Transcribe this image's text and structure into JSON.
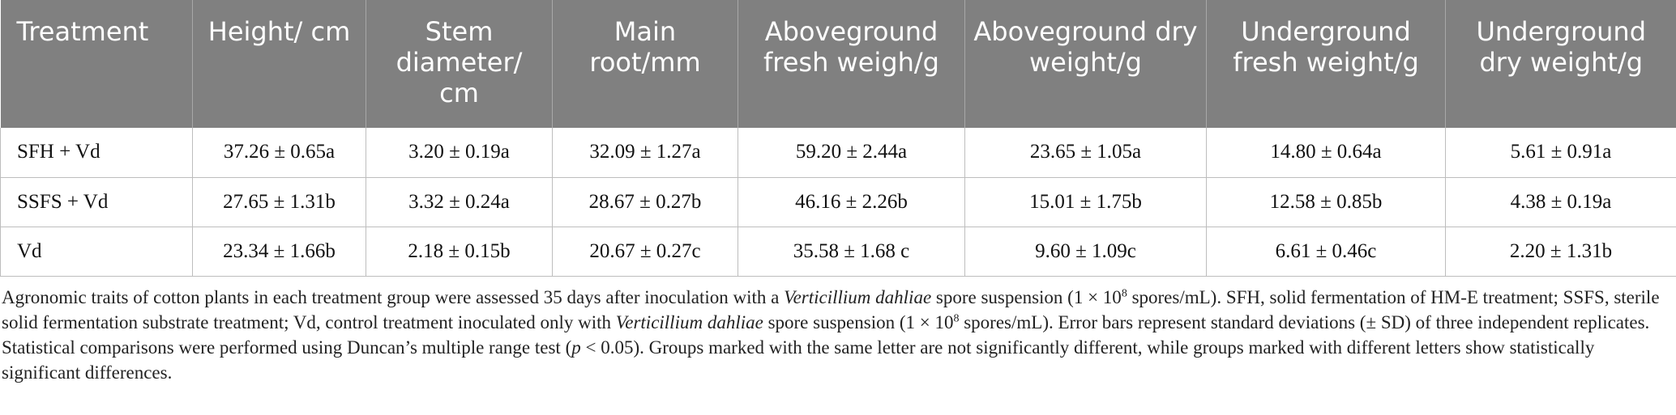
{
  "table": {
    "header": [
      "Treatment",
      "Height/ cm",
      "Stem diameter/ cm",
      "Main root/mm",
      "Aboveground fresh weigh/g",
      "Aboveground dry weight/g",
      "Underground fresh weight/g",
      "Underground dry weight/g"
    ],
    "rows": [
      [
        "SFH + Vd",
        "37.26 ± 0.65a",
        "3.20 ± 0.19a",
        "32.09 ± 1.27a",
        "59.20 ± 2.44a",
        "23.65 ± 1.05a",
        "14.80 ± 0.64a",
        "5.61 ± 0.91a"
      ],
      [
        "SSFS + Vd",
        "27.65 ± 1.31b",
        "3.32 ± 0.24a",
        "28.67 ± 0.27b",
        "46.16 ± 2.26b",
        "15.01 ± 1.75b",
        "12.58 ± 0.85b",
        "4.38 ± 0.19a"
      ],
      [
        "Vd",
        "23.34 ± 1.66b",
        "2.18 ± 0.15b",
        "20.67 ± 0.27c",
        "35.58 ± 1.68 c",
        "9.60 ± 1.09c",
        "6.61 ± 0.46c",
        "2.20 ± 1.31b"
      ]
    ]
  },
  "caption": [
    "Agronomic traits of cotton plants in each treatment group were assessed 35 days after inoculation with a ",
    "Verticillium dahliae",
    " spore suspension (1 × 10",
    "8",
    " spores/mL). SFH, solid fermentation of HM-E treatment; SSFS, sterile solid fermentation substrate treatment; Vd, control treatment inoculated only with ",
    "Verticillium dahliae",
    " spore suspension (1 × 10",
    "8",
    " spores/mL). Error bars represent standard deviations (± SD) of three independent replicates. Statistical comparisons were performed using Duncan’s multiple range test (",
    "p",
    " < 0.05). Groups marked with the same letter are not significantly different, while groups marked with different letters show statistically significant differences."
  ]
}
